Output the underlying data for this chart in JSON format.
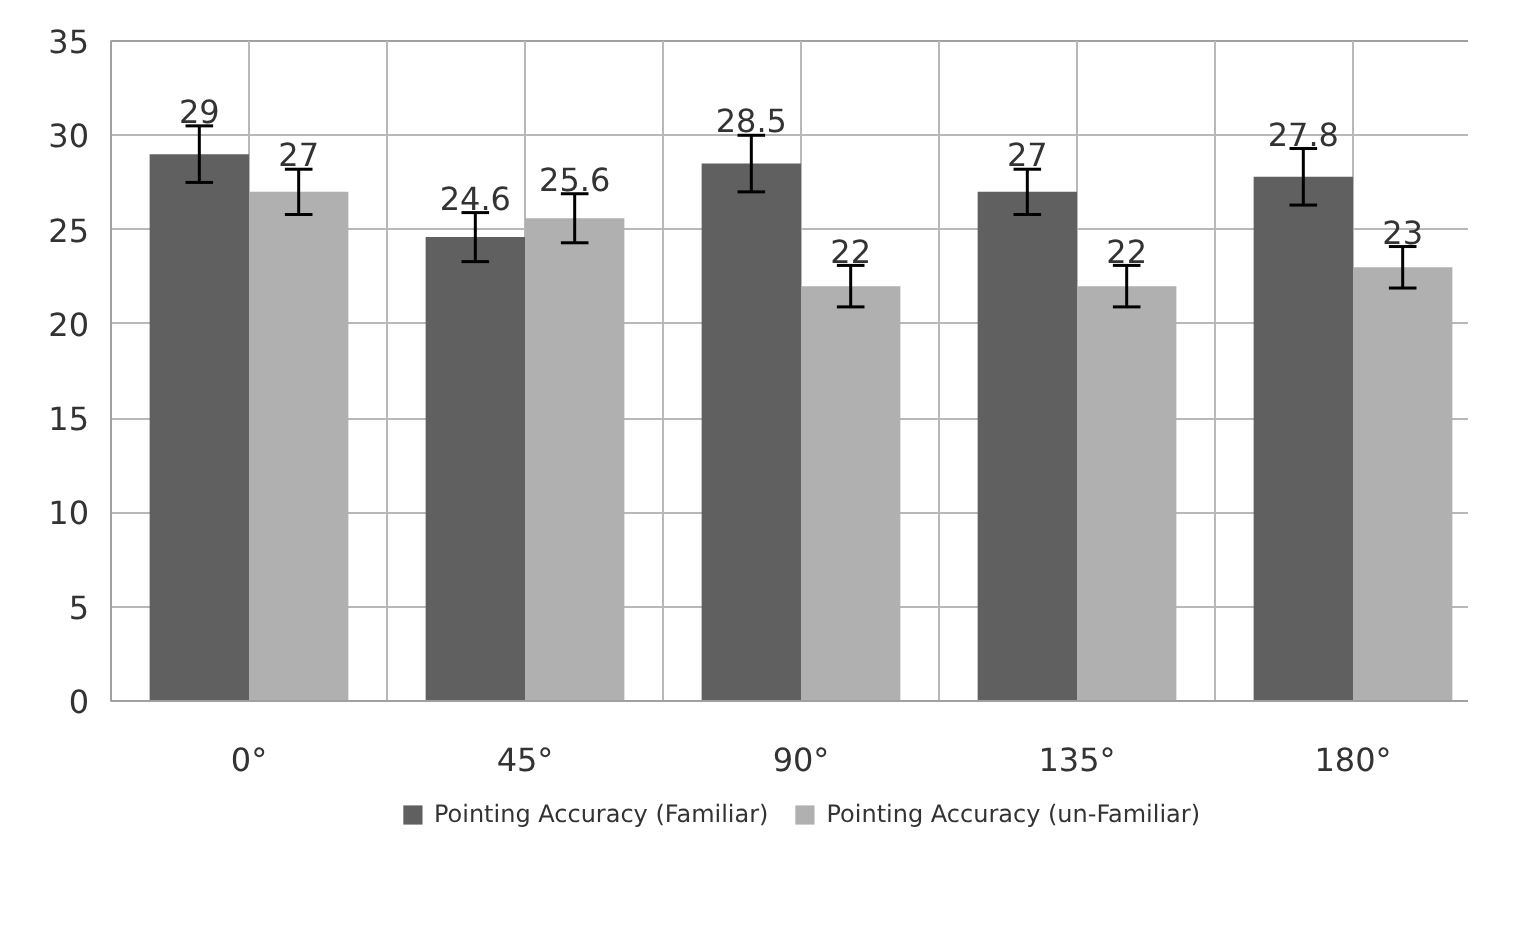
{
  "chart_data": {
    "type": "bar",
    "categories": [
      "0°",
      "45°",
      "90°",
      "135°",
      "180°"
    ],
    "series": [
      {
        "name": "Pointing Accuracy (Familiar)",
        "color": "#606060",
        "values": [
          29,
          24.6,
          28.5,
          27,
          27.8
        ],
        "errors": [
          1.5,
          1.3,
          1.5,
          1.2,
          1.5
        ]
      },
      {
        "name": "Pointing Accuracy (un-Familiar)",
        "color": "#b0b0b0",
        "values": [
          27,
          25.6,
          22,
          22,
          23
        ],
        "errors": [
          1.2,
          1.3,
          1.1,
          1.1,
          1.1
        ]
      }
    ],
    "ylim": [
      0,
      35
    ],
    "yticks": [
      0,
      5,
      10,
      15,
      20,
      25,
      30,
      35
    ],
    "grid": true,
    "legend": "bottom",
    "data_labels": true
  }
}
